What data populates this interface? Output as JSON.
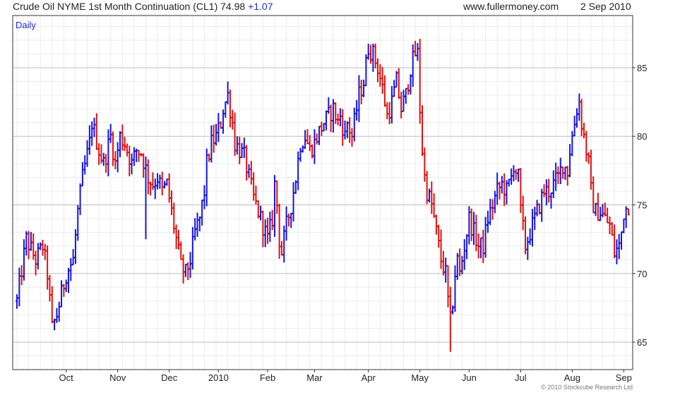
{
  "header": {
    "instrument": "Crude Oil NYME 1st Month Continuation (CL1)",
    "last": "74.98",
    "change": "+1.07",
    "site": "www.fullermoney.com",
    "date": "2 Sep 2010"
  },
  "footer": {
    "copyright": "© 2010 Stockcube Research Ltd"
  },
  "colors": {
    "up": "#1515e0",
    "down": "#e01010",
    "grid": "#d9d9d9",
    "frame": "#333333",
    "label": "#1a2fd1"
  },
  "chart_data": {
    "type": "ohlc",
    "interval_label": "Daily",
    "ylim": [
      63,
      88.8
    ],
    "yticks": [
      65,
      70,
      75,
      80,
      85
    ],
    "grid": true,
    "axis_side": "right",
    "month_labels": [
      {
        "label": "Oct",
        "day": 21
      },
      {
        "label": "Nov",
        "day": 43
      },
      {
        "label": "Dec",
        "day": 65
      },
      {
        "label": "2010",
        "day": 86
      },
      {
        "label": "Feb",
        "day": 107
      },
      {
        "label": "Mar",
        "day": 127
      },
      {
        "label": "Apr",
        "day": 150
      },
      {
        "label": "May",
        "day": 172
      },
      {
        "label": "Jun",
        "day": 193
      },
      {
        "label": "Jul",
        "day": 215
      },
      {
        "label": "Aug",
        "day": 237
      },
      {
        "label": "Sep",
        "day": 259
      }
    ],
    "close_path": [
      [
        0,
        68
      ],
      [
        4,
        72.5
      ],
      [
        8,
        71
      ],
      [
        11,
        72
      ],
      [
        13,
        70
      ],
      [
        15,
        66
      ],
      [
        17,
        67
      ],
      [
        21,
        70
      ],
      [
        24,
        71
      ],
      [
        26,
        74.5
      ],
      [
        28,
        77
      ],
      [
        31,
        79.5
      ],
      [
        32,
        81
      ],
      [
        35,
        79
      ],
      [
        37,
        78
      ],
      [
        40,
        80
      ],
      [
        42,
        78
      ],
      [
        44,
        80
      ],
      [
        46,
        79.5
      ],
      [
        49,
        78
      ],
      [
        51,
        79
      ],
      [
        53,
        78.8
      ],
      [
        56,
        77
      ],
      [
        58,
        76.5
      ],
      [
        60,
        77
      ],
      [
        62,
        76
      ],
      [
        64,
        76.5
      ],
      [
        66,
        74.5
      ],
      [
        68,
        72.5
      ],
      [
        70,
        70.5
      ],
      [
        72,
        70
      ],
      [
        74,
        71
      ],
      [
        76,
        73
      ],
      [
        78,
        74
      ],
      [
        80,
        76
      ],
      [
        81,
        78
      ],
      [
        83,
        79.5
      ],
      [
        85,
        80
      ],
      [
        86,
        80.5
      ],
      [
        87,
        81
      ],
      [
        88,
        82
      ],
      [
        90,
        83
      ],
      [
        91,
        82
      ],
      [
        92,
        81
      ],
      [
        93,
        79.5
      ],
      [
        95,
        79
      ],
      [
        97,
        78.5
      ],
      [
        99,
        77
      ],
      [
        101,
        75.5
      ],
      [
        103,
        74.5
      ],
      [
        105,
        73.5
      ],
      [
        106,
        73
      ],
      [
        107,
        72.5
      ],
      [
        109,
        74
      ],
      [
        110,
        76.5
      ],
      [
        111,
        75
      ],
      [
        112,
        72.5
      ],
      [
        113,
        71.5
      ],
      [
        115,
        73.5
      ],
      [
        117,
        75
      ],
      [
        119,
        77
      ],
      [
        121,
        79.5
      ],
      [
        123,
        80
      ],
      [
        125,
        79
      ],
      [
        127,
        79.5
      ],
      [
        128,
        80
      ],
      [
        131,
        81
      ],
      [
        133,
        81.5
      ],
      [
        135,
        82
      ],
      [
        137,
        81
      ],
      [
        138,
        81.5
      ],
      [
        140,
        80
      ],
      [
        141,
        81
      ],
      [
        143,
        80
      ],
      [
        145,
        82
      ],
      [
        146,
        83
      ],
      [
        148,
        84
      ],
      [
        150,
        86.5
      ],
      [
        152,
        86
      ],
      [
        154,
        85
      ],
      [
        156,
        83.5
      ],
      [
        158,
        81.5
      ],
      [
        160,
        82.5
      ],
      [
        162,
        84
      ],
      [
        164,
        82
      ],
      [
        166,
        83
      ],
      [
        168,
        85
      ],
      [
        170,
        86
      ],
      [
        171,
        86
      ],
      [
        172,
        82
      ],
      [
        173,
        79
      ],
      [
        174,
        77
      ],
      [
        175,
        76
      ],
      [
        177,
        75
      ],
      [
        178,
        74
      ],
      [
        179,
        73
      ],
      [
        181,
        71
      ],
      [
        183,
        70
      ],
      [
        184,
        68
      ],
      [
        185,
        66.5
      ],
      [
        186,
        68
      ],
      [
        187,
        70
      ],
      [
        188,
        71
      ],
      [
        189,
        70
      ],
      [
        191,
        72
      ],
      [
        193,
        74
      ],
      [
        195,
        73
      ],
      [
        197,
        72
      ],
      [
        199,
        72
      ],
      [
        201,
        74
      ],
      [
        203,
        75
      ],
      [
        205,
        76
      ],
      [
        207,
        76.5
      ],
      [
        209,
        76
      ],
      [
        211,
        77
      ],
      [
        212,
        78
      ],
      [
        214,
        77
      ],
      [
        215,
        74.5
      ],
      [
        217,
        72
      ],
      [
        219,
        73
      ],
      [
        221,
        74
      ],
      [
        223,
        75
      ],
      [
        225,
        76
      ],
      [
        227,
        76
      ],
      [
        229,
        76.5
      ],
      [
        231,
        77
      ],
      [
        233,
        78
      ],
      [
        235,
        77.5
      ],
      [
        236,
        79
      ],
      [
        237,
        80
      ],
      [
        238,
        81
      ],
      [
        239,
        82
      ],
      [
        240,
        82.5
      ],
      [
        241,
        81
      ],
      [
        242,
        80
      ],
      [
        243,
        79
      ],
      [
        244,
        78
      ],
      [
        245,
        76
      ],
      [
        246,
        75
      ],
      [
        247,
        74.5
      ],
      [
        249,
        74.5
      ],
      [
        251,
        74
      ],
      [
        253,
        73.5
      ],
      [
        254,
        72.5
      ],
      [
        255,
        71.5
      ],
      [
        257,
        72
      ],
      [
        258,
        73
      ],
      [
        259,
        74.5
      ],
      [
        261,
        75
      ]
    ]
  }
}
